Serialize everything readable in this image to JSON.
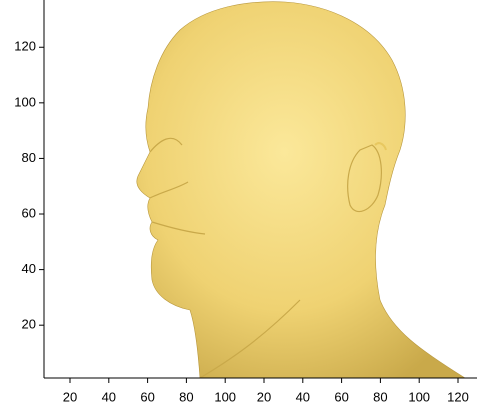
{
  "chart_data": {
    "type": "surface",
    "x_tick_labels": [
      "20",
      "40",
      "60",
      "80",
      "100",
      "20",
      "40",
      "60",
      "80",
      "100",
      "120"
    ],
    "ylim": [
      1,
      137
    ],
    "yticks": [
      20,
      40,
      60,
      80,
      100,
      120
    ],
    "color": "#f2d878"
  }
}
